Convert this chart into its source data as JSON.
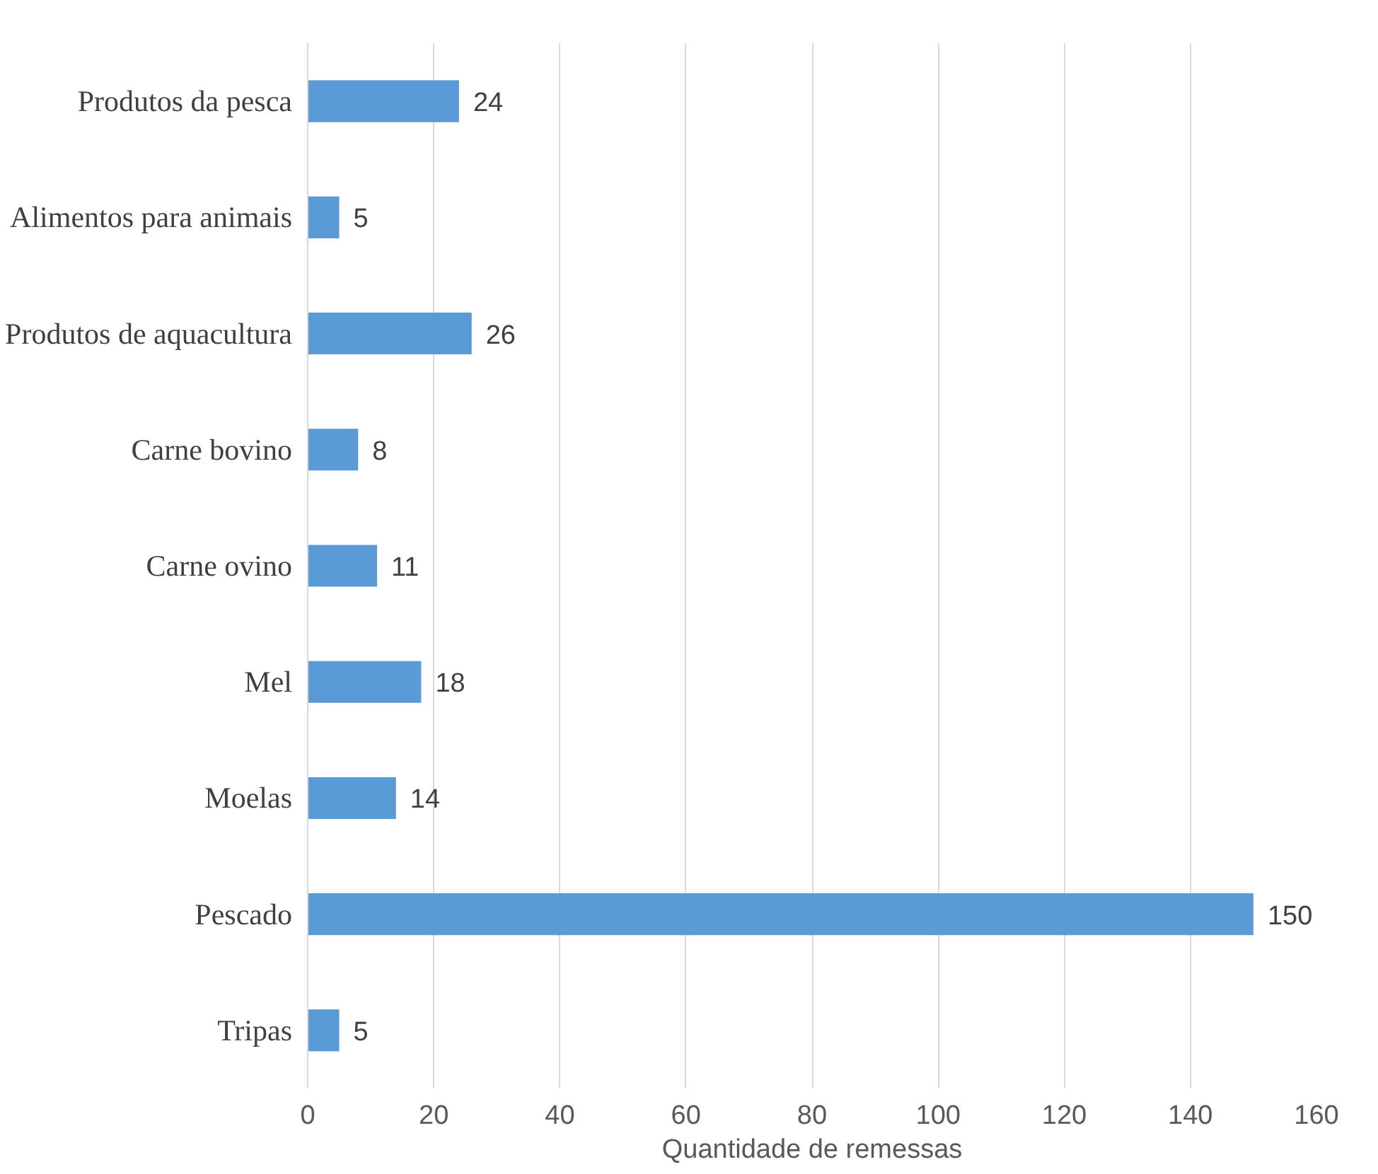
{
  "chart_data": {
    "type": "bar",
    "orientation": "horizontal",
    "xlabel": "Quantidade de remessas",
    "categories": [
      "Produtos da pesca",
      "Alimentos para animais",
      "Produtos de aquacultura",
      "Carne bovino",
      "Carne ovino",
      "Mel",
      "Moelas",
      "Pescado",
      "Tripas"
    ],
    "values": [
      24,
      5,
      26,
      8,
      11,
      18,
      14,
      150,
      5
    ],
    "color": "#5b9bd5",
    "xlim": [
      0,
      160
    ],
    "xticks": [
      0,
      20,
      40,
      60,
      80,
      100,
      120,
      140,
      160
    ],
    "grid": "x",
    "data_labels": true
  }
}
